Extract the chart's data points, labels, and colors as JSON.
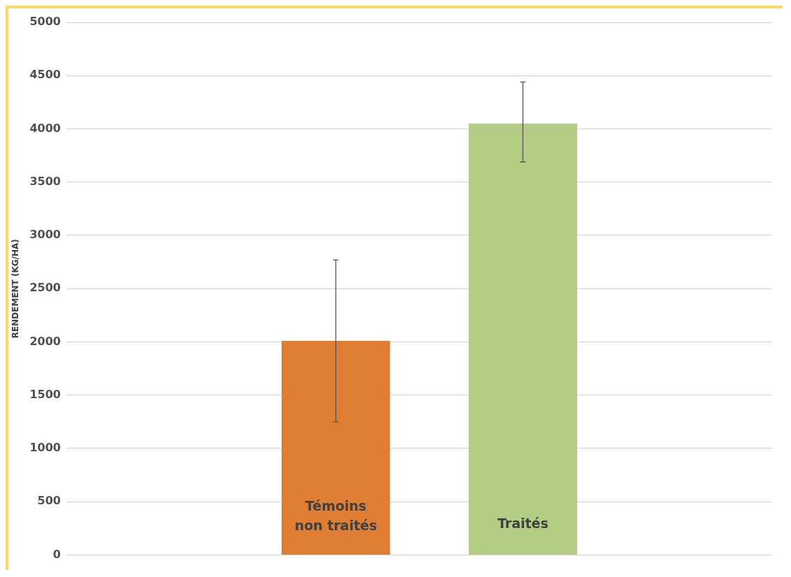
{
  "chart_data": {
    "type": "bar",
    "ylabel": "RENDEMENT (KG/HA)",
    "categories": [
      null
    ],
    "series": [
      {
        "name": "Témoins\nnon traités",
        "color": "#e07f34",
        "values": [
          2010
        ],
        "errors": [
          [
            1250,
            2770
          ]
        ]
      },
      {
        "name": "Traités",
        "color": "#b3cd85",
        "values": [
          4050
        ],
        "errors": [
          [
            3690,
            4440
          ]
        ]
      }
    ],
    "ylim": [
      0,
      5000
    ],
    "yticks": [
      0,
      500,
      1000,
      1500,
      2000,
      2500,
      3000,
      3500,
      4000,
      4500,
      5000
    ],
    "grid": "y",
    "legend": false
  }
}
